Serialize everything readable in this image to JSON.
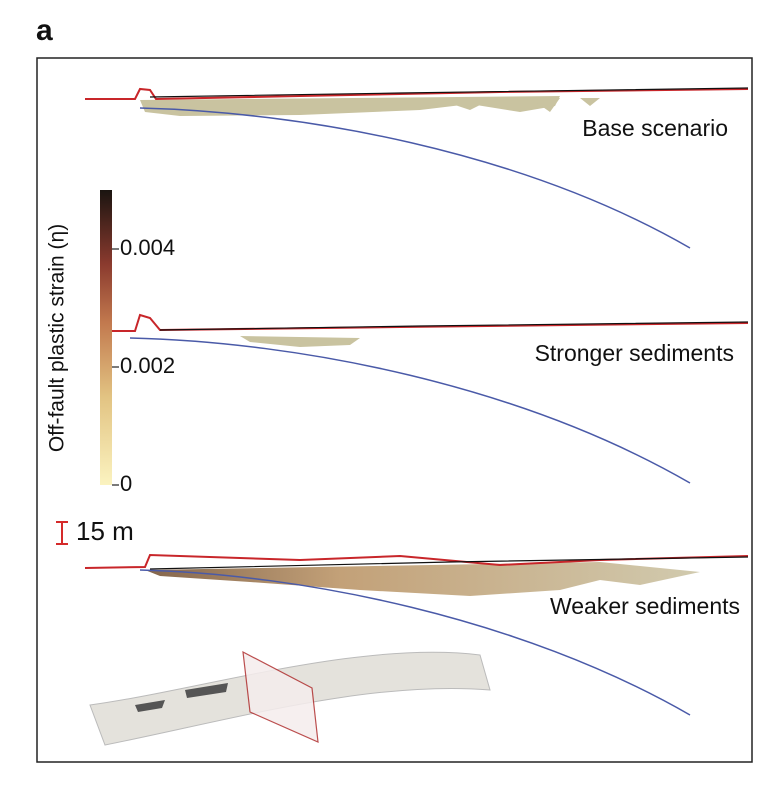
{
  "panel_label": "a",
  "colorbar": {
    "label": "Off-fault plastic strain (η)",
    "lim": [
      0,
      0.005
    ],
    "ticks": [
      0,
      0.002,
      0.004
    ]
  },
  "scale_bar": "15 m",
  "scenarios": [
    "Base scenario",
    "Stronger sediments",
    "Weaker sediments"
  ]
}
